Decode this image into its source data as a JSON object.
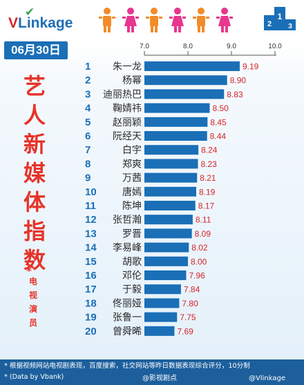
{
  "logo": {
    "first_letter": "V",
    "rest": "Linkage"
  },
  "date": "06月30日",
  "side_title": [
    "艺",
    "人",
    "新",
    "媒",
    "体",
    "指",
    "数"
  ],
  "side_subtitle": {
    "star": "*",
    "chars": [
      "电",
      "视",
      "演",
      "员"
    ]
  },
  "footnote": {
    "line1": "* 根据视频网站电视剧表现，百度搜索，社交网站等昨日数据表现综合评分，10分制",
    "line2": "* (Data by Vbank)",
    "watermark1": "@影视剧点",
    "watermark2": "@Vlinkage"
  },
  "colors": {
    "bar": "#1a6fb6",
    "accent": "#e6332a",
    "rank": "#1a6fb6",
    "value": "#d6242a"
  },
  "header_icons": [
    "person-icon",
    "person-icon",
    "person-icon",
    "person-icon",
    "person-icon",
    "person-icon",
    "podium-icon"
  ],
  "chart_data": {
    "type": "bar",
    "orientation": "horizontal",
    "xlim": [
      7.0,
      10.0
    ],
    "xticks": [
      "7.0",
      "8.0",
      "9.0",
      "10.0"
    ],
    "ranks": [
      "1",
      "2",
      "3",
      "4",
      "5",
      "6",
      "7",
      "8",
      "9",
      "10",
      "11",
      "12",
      "13",
      "14",
      "15",
      "16",
      "17",
      "18",
      "19",
      "20"
    ],
    "categories": [
      "朱一龙",
      "杨幂",
      "迪丽热巴",
      "鞠婧祎",
      "赵丽颖",
      "阮经天",
      "白宇",
      "郑爽",
      "万茜",
      "唐嫣",
      "陈坤",
      "张哲瀚",
      "罗晋",
      "李易峰",
      "胡歌",
      "邓伦",
      "于毅",
      "佟丽娅",
      "张鲁一",
      "曾舜晞"
    ],
    "values": [
      9.19,
      8.9,
      8.83,
      8.5,
      8.45,
      8.44,
      8.24,
      8.23,
      8.21,
      8.19,
      8.17,
      8.11,
      8.09,
      8.02,
      8.0,
      7.96,
      7.84,
      7.8,
      7.75,
      7.69
    ],
    "value_labels": [
      "9.19",
      "8.90",
      "8.83",
      "8.50",
      "8.45",
      "8.44",
      "8.24",
      "8.23",
      "8.21",
      "8.19",
      "8.17",
      "8.11",
      "8.09",
      "8.02",
      "8.00",
      "7.96",
      "7.84",
      "7.80",
      "7.75",
      "7.69"
    ]
  }
}
